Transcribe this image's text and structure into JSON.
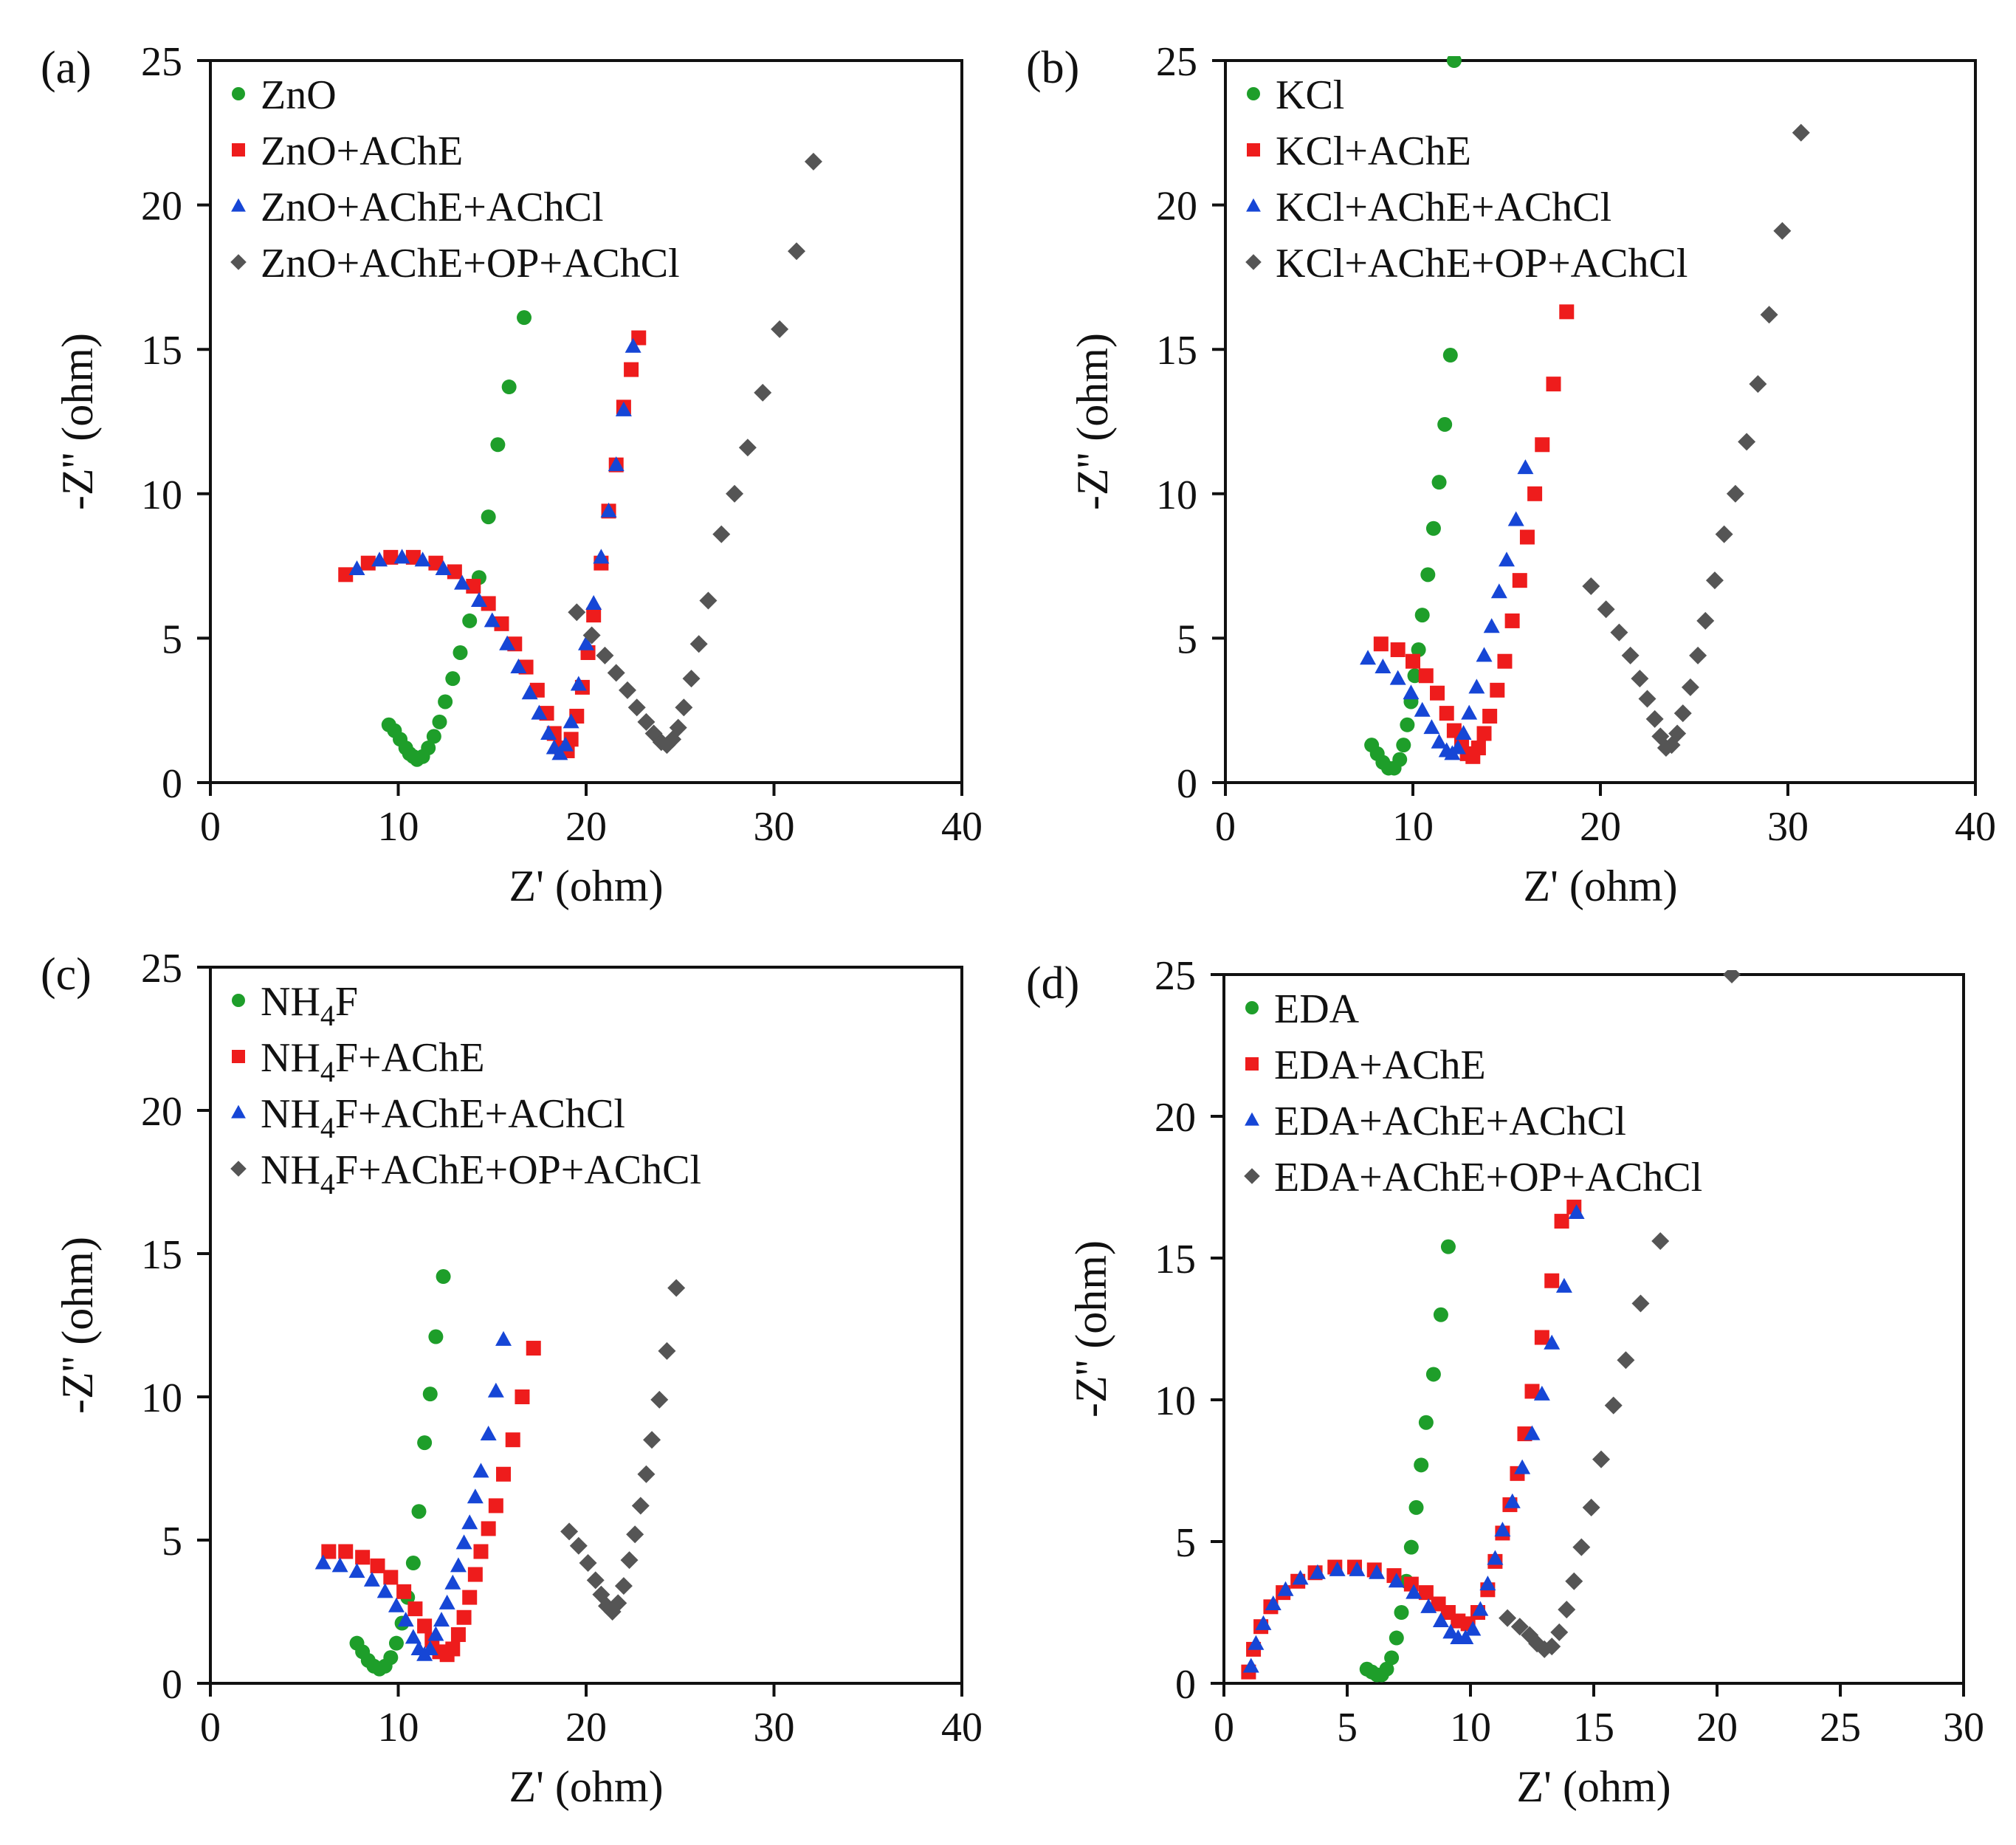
{
  "colors": {
    "green": "#1e9e2a",
    "red": "#ee1c1c",
    "blue": "#1646d6",
    "gray": "#555555"
  },
  "chart_data": [
    {
      "type": "scatter",
      "panel_label": "(a)",
      "xlabel": "Z' (ohm)",
      "ylabel": "-Z'' (ohm)",
      "xlim": [
        0,
        40
      ],
      "ylim": [
        0,
        25
      ],
      "xticks": [
        0,
        10,
        20,
        30,
        40
      ],
      "yticks": [
        0,
        5,
        10,
        15,
        20,
        25
      ],
      "legend": {
        "placement": "top-left"
      },
      "series": [
        {
          "name": "ZnO",
          "legend_parts": [
            {
              "t": "ZnO"
            }
          ],
          "marker": "circle",
          "color": "green",
          "x": [
            9.5,
            9.8,
            10.1,
            10.4,
            10.6,
            10.8,
            11.0,
            11.3,
            11.6,
            11.9,
            12.2,
            12.5,
            12.9,
            13.3,
            13.8,
            14.3,
            14.8,
            15.3,
            15.9,
            16.7
          ],
          "y": [
            2.0,
            1.8,
            1.5,
            1.2,
            1.0,
            0.9,
            0.8,
            0.9,
            1.2,
            1.6,
            2.1,
            2.8,
            3.6,
            4.5,
            5.6,
            7.1,
            9.2,
            11.7,
            13.7,
            16.1
          ]
        },
        {
          "name": "ZnO+AChE",
          "legend_parts": [
            {
              "t": "ZnO+AChE"
            }
          ],
          "marker": "square",
          "color": "red",
          "x": [
            7.2,
            8.4,
            9.6,
            10.8,
            12.0,
            13.0,
            14.0,
            14.8,
            15.5,
            16.2,
            16.8,
            17.4,
            17.9,
            18.3,
            18.7,
            19.0,
            19.2,
            19.5,
            19.8,
            20.1,
            20.4,
            20.8,
            21.2,
            21.6,
            22.0,
            22.4,
            22.8
          ],
          "y": [
            7.2,
            7.6,
            7.8,
            7.8,
            7.6,
            7.3,
            6.8,
            6.2,
            5.5,
            4.8,
            4.0,
            3.2,
            2.4,
            1.7,
            1.2,
            1.1,
            1.5,
            2.3,
            3.3,
            4.5,
            5.8,
            7.6,
            9.4,
            11.0,
            13.0,
            14.3,
            15.4
          ]
        },
        {
          "name": "ZnO+AChE+AChCl",
          "legend_parts": [
            {
              "t": "ZnO+AChE+AChCl"
            }
          ],
          "marker": "triangle",
          "color": "blue",
          "x": [
            7.8,
            9.0,
            10.2,
            11.3,
            12.4,
            13.4,
            14.3,
            15.0,
            15.8,
            16.4,
            17.0,
            17.5,
            18.0,
            18.3,
            18.6,
            18.9,
            19.2,
            19.6,
            20.0,
            20.4,
            20.8,
            21.2,
            21.6,
            22.0,
            22.5
          ],
          "y": [
            7.4,
            7.7,
            7.8,
            7.7,
            7.4,
            6.9,
            6.3,
            5.6,
            4.8,
            4.0,
            3.1,
            2.4,
            1.7,
            1.2,
            1.0,
            1.3,
            2.1,
            3.4,
            4.8,
            6.2,
            7.8,
            9.4,
            11.0,
            12.9,
            15.1
          ]
        },
        {
          "name": "ZnO+AChE+OP+AChCl",
          "legend_parts": [
            {
              "t": "ZnO+AChE+OP+AChCl"
            }
          ],
          "marker": "diamond",
          "color": "gray",
          "x": [
            19.5,
            20.3,
            21.0,
            21.6,
            22.2,
            22.7,
            23.2,
            23.6,
            24.0,
            24.3,
            24.6,
            24.9,
            25.2,
            25.6,
            26.0,
            26.5,
            27.2,
            27.9,
            28.6,
            29.4,
            30.3,
            31.2,
            32.1
          ],
          "y": [
            5.9,
            5.1,
            4.4,
            3.8,
            3.2,
            2.6,
            2.1,
            1.7,
            1.4,
            1.3,
            1.5,
            1.9,
            2.6,
            3.6,
            4.8,
            6.3,
            8.6,
            10.0,
            11.6,
            13.5,
            15.7,
            18.4,
            21.5
          ]
        }
      ]
    },
    {
      "type": "scatter",
      "panel_label": "(b)",
      "xlabel": "Z' (ohm)",
      "ylabel": "-Z'' (ohm)",
      "xlim": [
        0,
        40
      ],
      "ylim": [
        0,
        25
      ],
      "xticks": [
        0,
        10,
        20,
        30,
        40
      ],
      "yticks": [
        0,
        5,
        10,
        15,
        20,
        25
      ],
      "legend": {
        "placement": "top-left"
      },
      "series": [
        {
          "name": "KCl",
          "legend_parts": [
            {
              "t": "KCl"
            }
          ],
          "marker": "circle",
          "color": "green",
          "x": [
            7.8,
            8.1,
            8.4,
            8.7,
            9.0,
            9.3,
            9.5,
            9.7,
            9.9,
            10.1,
            10.3,
            10.5,
            10.8,
            11.1,
            11.4,
            11.7,
            12.0,
            12.2
          ],
          "y": [
            1.3,
            1.0,
            0.7,
            0.5,
            0.5,
            0.8,
            1.3,
            2.0,
            2.8,
            3.7,
            4.6,
            5.8,
            7.2,
            8.8,
            10.4,
            12.4,
            14.8,
            25.0
          ]
        },
        {
          "name": "KCl+AChE",
          "legend_parts": [
            {
              "t": "KCl+AChE"
            }
          ],
          "marker": "square",
          "color": "red",
          "x": [
            8.3,
            9.2,
            10.0,
            10.7,
            11.3,
            11.8,
            12.2,
            12.6,
            12.9,
            13.2,
            13.5,
            13.8,
            14.1,
            14.5,
            14.9,
            15.3,
            15.7,
            16.1,
            16.5,
            16.9,
            17.5,
            18.2
          ],
          "y": [
            4.8,
            4.6,
            4.2,
            3.7,
            3.1,
            2.4,
            1.8,
            1.3,
            1.0,
            0.9,
            1.2,
            1.7,
            2.3,
            3.2,
            4.2,
            5.6,
            7.0,
            8.5,
            10.0,
            11.7,
            13.8,
            16.3
          ]
        },
        {
          "name": "KCl+AChE+AChCl",
          "legend_parts": [
            {
              "t": "KCl+AChE+AChCl"
            }
          ],
          "marker": "triangle",
          "color": "blue",
          "x": [
            7.6,
            8.4,
            9.2,
            9.9,
            10.5,
            11.0,
            11.4,
            11.8,
            12.1,
            12.4,
            12.7,
            13.0,
            13.4,
            13.8,
            14.2,
            14.6,
            15.0,
            15.5,
            16.0
          ],
          "y": [
            4.3,
            4.0,
            3.6,
            3.1,
            2.5,
            1.9,
            1.4,
            1.1,
            1.0,
            1.2,
            1.7,
            2.4,
            3.3,
            4.4,
            5.4,
            6.6,
            7.7,
            9.1,
            10.9
          ]
        },
        {
          "name": "KCl+AChE+OP+AChCl",
          "legend_parts": [
            {
              "t": "KCl+AChE+OP+AChCl"
            }
          ],
          "marker": "diamond",
          "color": "gray",
          "x": [
            19.5,
            20.3,
            21.0,
            21.6,
            22.1,
            22.5,
            22.9,
            23.2,
            23.5,
            23.8,
            24.1,
            24.4,
            24.8,
            25.2,
            25.6,
            26.1,
            26.6,
            27.2,
            27.8,
            28.4,
            29.0,
            29.7,
            30.7
          ],
          "y": [
            6.8,
            6.0,
            5.2,
            4.4,
            3.6,
            2.9,
            2.2,
            1.6,
            1.2,
            1.3,
            1.7,
            2.4,
            3.3,
            4.4,
            5.6,
            7.0,
            8.6,
            10.0,
            11.8,
            13.8,
            16.2,
            19.1,
            22.5
          ]
        }
      ]
    },
    {
      "type": "scatter",
      "panel_label": "(c)",
      "xlabel": "Z' (ohm)",
      "ylabel": "-Z'' (ohm)",
      "xlim": [
        0,
        40
      ],
      "ylim": [
        0,
        25
      ],
      "xticks": [
        0,
        10,
        20,
        30,
        40
      ],
      "yticks": [
        0,
        5,
        10,
        15,
        20,
        25
      ],
      "legend": {
        "placement": "top-left"
      },
      "series": [
        {
          "name": "NH4F",
          "legend_parts": [
            {
              "t": "NH"
            },
            {
              "t": "4",
              "sub": true
            },
            {
              "t": "F"
            }
          ],
          "marker": "circle",
          "color": "green",
          "x": [
            7.8,
            8.1,
            8.4,
            8.7,
            9.0,
            9.3,
            9.6,
            9.9,
            10.2,
            10.5,
            10.8,
            11.1,
            11.4,
            11.7,
            12.0,
            12.4
          ],
          "y": [
            1.4,
            1.1,
            0.8,
            0.6,
            0.5,
            0.6,
            0.9,
            1.4,
            2.1,
            3.0,
            4.2,
            6.0,
            8.4,
            10.1,
            12.1,
            14.2
          ]
        },
        {
          "name": "NH4F+AChE",
          "legend_parts": [
            {
              "t": "NH"
            },
            {
              "t": "4",
              "sub": true
            },
            {
              "t": "F+AChE"
            }
          ],
          "marker": "square",
          "color": "red",
          "x": [
            6.3,
            7.2,
            8.1,
            8.9,
            9.6,
            10.3,
            10.9,
            11.4,
            11.8,
            12.2,
            12.6,
            12.9,
            13.2,
            13.5,
            13.8,
            14.1,
            14.4,
            14.8,
            15.2,
            15.6,
            16.1,
            16.6,
            17.2
          ],
          "y": [
            4.6,
            4.6,
            4.4,
            4.1,
            3.7,
            3.2,
            2.6,
            2.0,
            1.5,
            1.1,
            1.0,
            1.2,
            1.7,
            2.3,
            3.0,
            3.8,
            4.6,
            5.4,
            6.2,
            7.3,
            8.5,
            10.0,
            11.7
          ]
        },
        {
          "name": "NH4F+AChE+AChCl",
          "legend_parts": [
            {
              "t": "NH"
            },
            {
              "t": "4",
              "sub": true
            },
            {
              "t": "F+AChE+AChCl"
            }
          ],
          "marker": "triangle",
          "color": "blue",
          "x": [
            6.0,
            6.9,
            7.8,
            8.6,
            9.3,
            9.9,
            10.4,
            10.8,
            11.1,
            11.4,
            11.7,
            12.0,
            12.3,
            12.6,
            12.9,
            13.2,
            13.5,
            13.8,
            14.1,
            14.4,
            14.8,
            15.2,
            15.6
          ],
          "y": [
            4.2,
            4.1,
            3.9,
            3.6,
            3.2,
            2.7,
            2.2,
            1.6,
            1.2,
            1.0,
            1.2,
            1.7,
            2.2,
            2.8,
            3.5,
            4.1,
            4.9,
            5.6,
            6.5,
            7.4,
            8.7,
            10.2,
            12.0
          ]
        },
        {
          "name": "NH4F+AChE+OP+AChCl",
          "legend_parts": [
            {
              "t": "NH"
            },
            {
              "t": "4",
              "sub": true
            },
            {
              "t": "F+AChE+OP+AChCl"
            }
          ],
          "marker": "diamond",
          "color": "gray",
          "x": [
            19.1,
            19.6,
            20.1,
            20.5,
            20.8,
            21.1,
            21.4,
            21.7,
            22.0,
            22.3,
            22.6,
            22.9,
            23.2,
            23.5,
            23.9,
            24.3,
            24.8
          ],
          "y": [
            5.3,
            4.8,
            4.2,
            3.6,
            3.1,
            2.7,
            2.5,
            2.8,
            3.4,
            4.3,
            5.2,
            6.2,
            7.3,
            8.5,
            9.9,
            11.6,
            13.8
          ]
        }
      ]
    },
    {
      "type": "scatter",
      "panel_label": "(d)",
      "xlabel": "Z' (ohm)",
      "ylabel": "-Z'' (ohm)",
      "xlim": [
        0,
        30
      ],
      "ylim": [
        0,
        25
      ],
      "xticks": [
        0,
        5,
        10,
        15,
        20,
        25,
        30
      ],
      "yticks": [
        0,
        5,
        10,
        15,
        20,
        25
      ],
      "legend": {
        "placement": "top-left"
      },
      "series": [
        {
          "name": "EDA",
          "legend_parts": [
            {
              "t": "EDA"
            }
          ],
          "marker": "circle",
          "color": "green",
          "x": [
            5.8,
            6.0,
            6.2,
            6.4,
            6.6,
            6.8,
            7.0,
            7.2,
            7.4,
            7.6,
            7.8,
            8.0,
            8.2,
            8.5,
            8.8,
            9.1
          ],
          "y": [
            0.5,
            0.4,
            0.3,
            0.3,
            0.5,
            0.9,
            1.6,
            2.5,
            3.6,
            4.8,
            6.2,
            7.7,
            9.2,
            10.9,
            13.0,
            15.4
          ]
        },
        {
          "name": "EDA+AChE",
          "legend_parts": [
            {
              "t": "EDA+AChE"
            }
          ],
          "marker": "square",
          "color": "red",
          "x": [
            1.0,
            1.2,
            1.5,
            1.9,
            2.4,
            3.0,
            3.7,
            4.5,
            5.3,
            6.1,
            6.9,
            7.6,
            8.2,
            8.7,
            9.1,
            9.5,
            9.9,
            10.3,
            10.7,
            11.0,
            11.3,
            11.6,
            11.9,
            12.2,
            12.5,
            12.9,
            13.3,
            13.7,
            14.2
          ],
          "y": [
            0.4,
            1.2,
            2.0,
            2.7,
            3.2,
            3.6,
            3.9,
            4.1,
            4.1,
            4.0,
            3.8,
            3.5,
            3.2,
            2.8,
            2.5,
            2.2,
            2.1,
            2.5,
            3.3,
            4.3,
            5.3,
            6.3,
            7.4,
            8.8,
            10.3,
            12.2,
            14.2,
            16.3,
            16.8
          ]
        },
        {
          "name": "EDA+AChE+AChCl",
          "legend_parts": [
            {
              "t": "EDA+AChE+AChCl"
            }
          ],
          "marker": "triangle",
          "color": "blue",
          "x": [
            1.1,
            1.3,
            1.6,
            2.0,
            2.5,
            3.1,
            3.8,
            4.6,
            5.4,
            6.2,
            7.0,
            7.7,
            8.3,
            8.8,
            9.2,
            9.5,
            9.8,
            10.1,
            10.4,
            10.7,
            11.0,
            11.3,
            11.7,
            12.1,
            12.5,
            12.9,
            13.3,
            13.8,
            14.3
          ],
          "y": [
            0.6,
            1.4,
            2.1,
            2.8,
            3.3,
            3.7,
            3.9,
            4.0,
            4.0,
            3.9,
            3.6,
            3.2,
            2.7,
            2.2,
            1.8,
            1.6,
            1.6,
            1.9,
            2.6,
            3.5,
            4.4,
            5.4,
            6.4,
            7.6,
            8.8,
            10.2,
            12.0,
            14.0,
            16.6
          ]
        },
        {
          "name": "EDA+AChE+OP+AChCl",
          "legend_parts": [
            {
              "t": "EDA+AChE+OP+AChCl"
            }
          ],
          "marker": "diamond",
          "color": "gray",
          "x": [
            11.5,
            12.0,
            12.4,
            12.7,
            13.0,
            13.3,
            13.6,
            13.9,
            14.2,
            14.5,
            14.9,
            15.3,
            15.8,
            16.3,
            16.9,
            17.7,
            20.6
          ],
          "y": [
            2.3,
            2.0,
            1.7,
            1.4,
            1.2,
            1.3,
            1.8,
            2.6,
            3.6,
            4.8,
            6.2,
            7.9,
            9.8,
            11.4,
            13.4,
            15.6,
            25.0
          ]
        }
      ]
    }
  ]
}
